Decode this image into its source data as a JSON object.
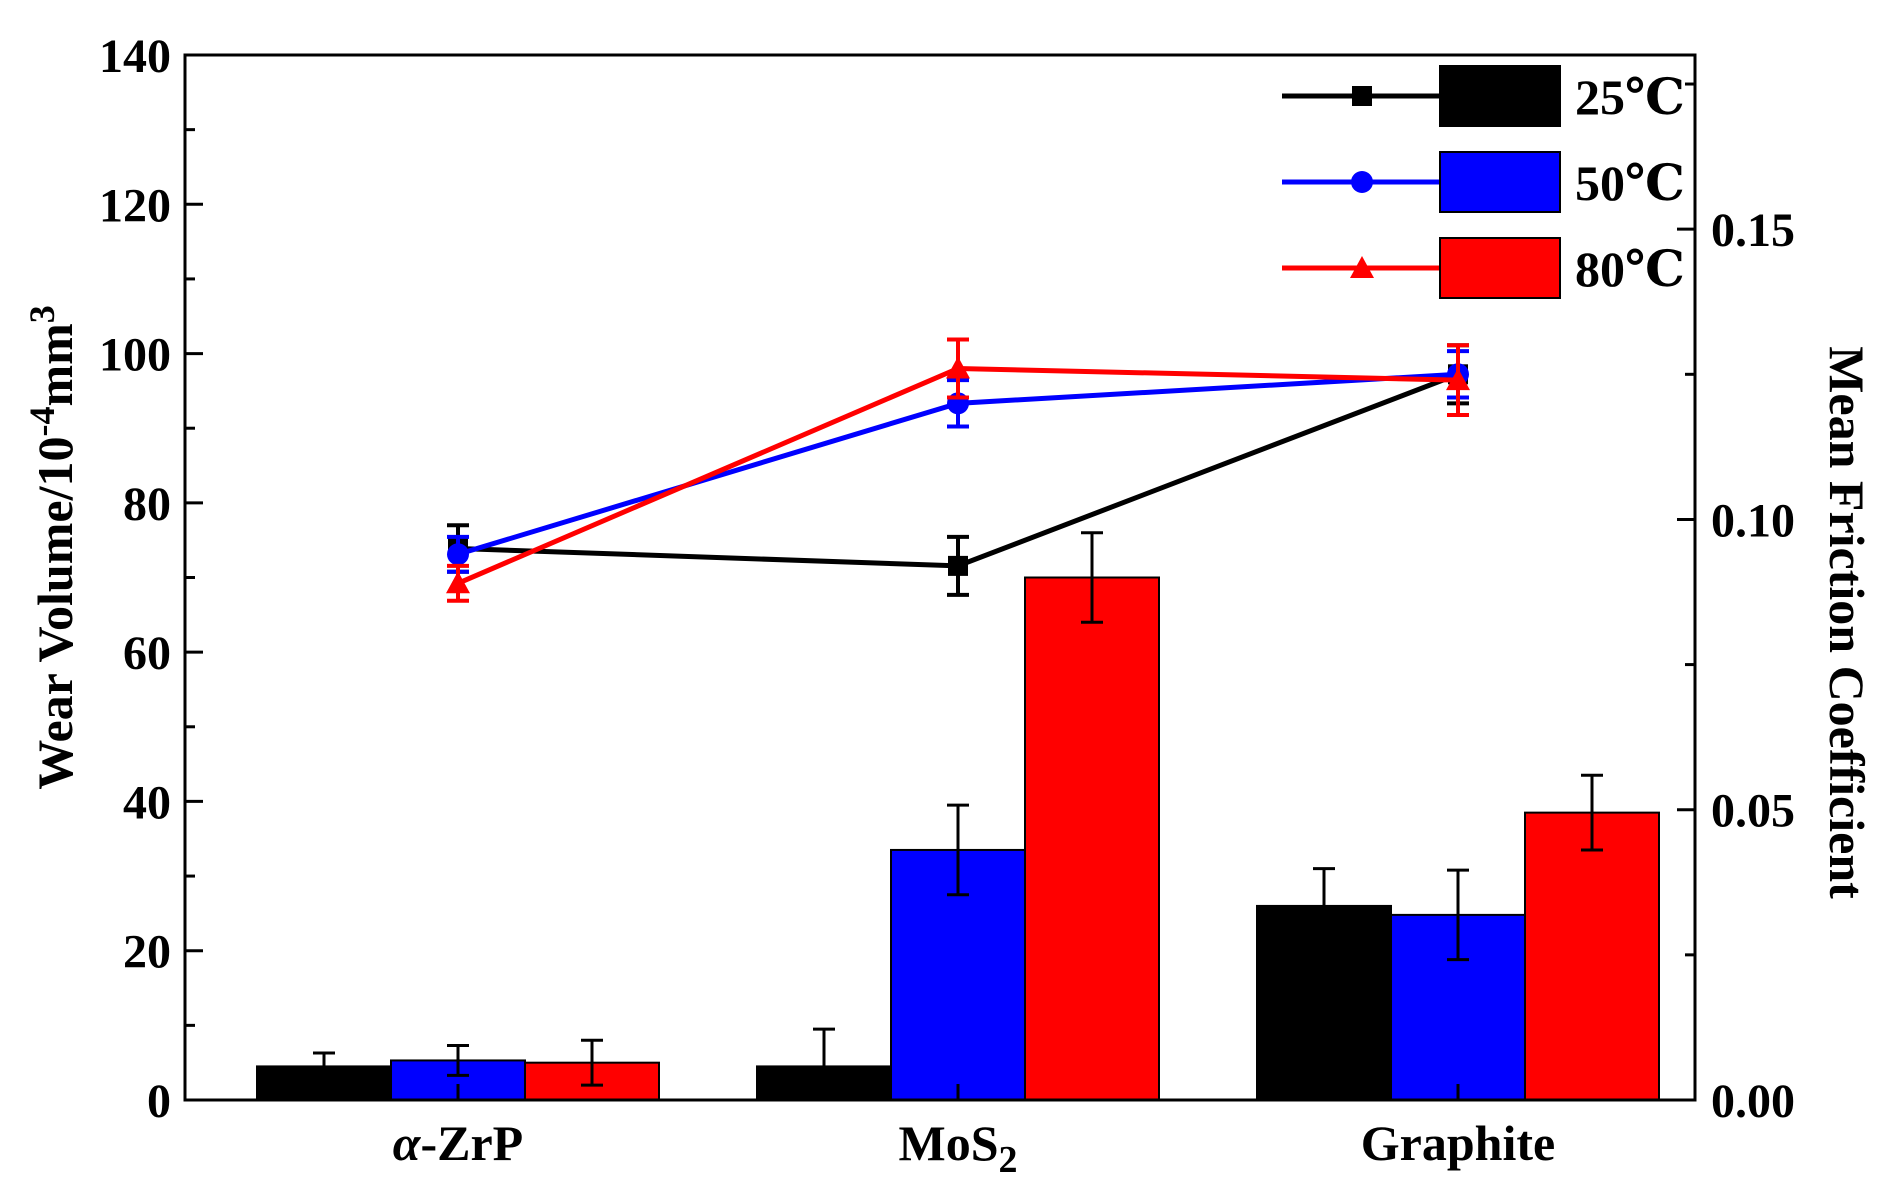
{
  "chart_data": {
    "type": "bar+line",
    "categories": [
      "α-ZrP",
      "MoS2",
      "Graphite"
    ],
    "left_axis": {
      "label": "Wear Volume/10-4mm3",
      "label_parts": [
        "Wear Volume/10",
        "-4",
        "mm",
        "3"
      ],
      "ylim": [
        0,
        140
      ],
      "ticks": [
        0,
        20,
        40,
        60,
        80,
        100,
        120,
        140
      ],
      "tick_labels": [
        "0",
        "20",
        "40",
        "60",
        "80",
        "100",
        "120",
        "140"
      ]
    },
    "right_axis": {
      "label": "Mean Friction Coefficient",
      "ylim": [
        0,
        0.18
      ],
      "ticks": [
        0.0,
        0.05,
        0.1,
        0.15
      ],
      "tick_labels": [
        "0.00",
        "0.05",
        "0.10",
        "0.15"
      ]
    },
    "series": [
      {
        "name": "25℃",
        "color": "#000000",
        "marker": "square",
        "wear_volume": [
          4.5,
          4.5,
          26
        ],
        "wear_error": [
          1.8,
          5.0,
          5.0
        ],
        "friction": [
          0.095,
          0.092,
          0.125
        ],
        "friction_error": [
          0.004,
          0.005,
          0.005
        ]
      },
      {
        "name": "50℃",
        "color": "#0000ff",
        "marker": "circle",
        "wear_volume": [
          5.3,
          33.5,
          24.8
        ],
        "wear_error": [
          2.0,
          6.0,
          6.0
        ],
        "friction": [
          0.094,
          0.12,
          0.125
        ],
        "friction_error": [
          0.003,
          0.004,
          0.004
        ]
      },
      {
        "name": "80℃",
        "color": "#ff0000",
        "marker": "triangle",
        "wear_volume": [
          5.0,
          70,
          38.5
        ],
        "wear_error": [
          3.0,
          6.0,
          5.0
        ],
        "friction": [
          0.089,
          0.126,
          0.124
        ],
        "friction_error": [
          0.003,
          0.005,
          0.006
        ]
      }
    ],
    "legend": {
      "position": "top-right",
      "entries": [
        "25℃",
        "50℃",
        "80℃"
      ]
    },
    "category_labels": [
      {
        "main": "α",
        "rest": "-ZrP",
        "italic_first": true
      },
      {
        "main": "MoS",
        "sub": "2"
      },
      {
        "main": "Graphite"
      }
    ]
  }
}
